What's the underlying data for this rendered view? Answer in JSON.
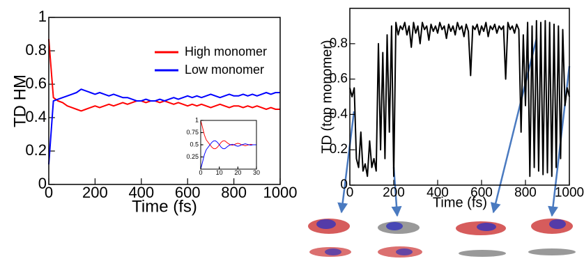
{
  "chart_data": [
    {
      "type": "line",
      "xlabel": "Time (fs)",
      "ylabel": "TD HM",
      "x": [
        0,
        20,
        40,
        60,
        80,
        100,
        120,
        140,
        160,
        180,
        200,
        220,
        240,
        260,
        280,
        300,
        320,
        340,
        360,
        380,
        400,
        420,
        440,
        460,
        480,
        500,
        520,
        540,
        560,
        580,
        600,
        620,
        640,
        660,
        680,
        700,
        720,
        740,
        760,
        780,
        800,
        820,
        840,
        860,
        880,
        900,
        920,
        940,
        960,
        980,
        1000
      ],
      "series": [
        {
          "name": "High monomer",
          "color": "#ff0000",
          "values": [
            0.87,
            0.52,
            0.5,
            0.49,
            0.47,
            0.46,
            0.45,
            0.44,
            0.45,
            0.46,
            0.47,
            0.46,
            0.47,
            0.48,
            0.47,
            0.48,
            0.49,
            0.48,
            0.49,
            0.5,
            0.5,
            0.49,
            0.5,
            0.5,
            0.49,
            0.5,
            0.49,
            0.48,
            0.49,
            0.48,
            0.47,
            0.48,
            0.47,
            0.48,
            0.47,
            0.46,
            0.47,
            0.48,
            0.47,
            0.46,
            0.47,
            0.47,
            0.46,
            0.47,
            0.46,
            0.47,
            0.46,
            0.45,
            0.46,
            0.45,
            0.45
          ]
        },
        {
          "name": "Low monomer",
          "color": "#0000ff",
          "values": [
            0.12,
            0.5,
            0.51,
            0.52,
            0.53,
            0.54,
            0.55,
            0.57,
            0.56,
            0.55,
            0.54,
            0.55,
            0.54,
            0.53,
            0.54,
            0.53,
            0.52,
            0.52,
            0.51,
            0.5,
            0.5,
            0.51,
            0.5,
            0.5,
            0.51,
            0.5,
            0.51,
            0.52,
            0.51,
            0.52,
            0.53,
            0.52,
            0.53,
            0.52,
            0.53,
            0.54,
            0.53,
            0.52,
            0.53,
            0.54,
            0.53,
            0.53,
            0.54,
            0.53,
            0.54,
            0.53,
            0.54,
            0.55,
            0.54,
            0.55,
            0.55
          ]
        }
      ],
      "xlim": [
        0,
        1000
      ],
      "xticks": [
        0,
        200,
        400,
        600,
        800,
        1000
      ],
      "ylim": [
        0,
        1
      ],
      "yticks": [
        0,
        0.2,
        0.4,
        0.6,
        0.8,
        1
      ],
      "legend": "upper right"
    },
    {
      "type": "line",
      "x": [
        0,
        1,
        2,
        3,
        4,
        5,
        6,
        7,
        8,
        9,
        10,
        11,
        12,
        13,
        14,
        15,
        16,
        17,
        18,
        19,
        20,
        21,
        22,
        23,
        24,
        25,
        26,
        27,
        28,
        29,
        30
      ],
      "series": [
        {
          "color": "#ff0000",
          "values": [
            1,
            0.85,
            0.7,
            0.6,
            0.55,
            0.5,
            0.45,
            0.42,
            0.42,
            0.45,
            0.5,
            0.55,
            0.58,
            0.58,
            0.55,
            0.52,
            0.5,
            0.49,
            0.5,
            0.52,
            0.53,
            0.52,
            0.5,
            0.49,
            0.48,
            0.49,
            0.5,
            0.51,
            0.5,
            0.5,
            0.5
          ]
        },
        {
          "color": "#0000ff",
          "values": [
            0,
            0.15,
            0.3,
            0.4,
            0.45,
            0.5,
            0.55,
            0.58,
            0.58,
            0.55,
            0.5,
            0.45,
            0.42,
            0.42,
            0.45,
            0.48,
            0.5,
            0.51,
            0.5,
            0.48,
            0.47,
            0.48,
            0.5,
            0.51,
            0.52,
            0.51,
            0.5,
            0.49,
            0.5,
            0.5,
            0.5
          ]
        }
      ],
      "xlim": [
        0,
        30
      ],
      "xticks": [
        0,
        10,
        20,
        30
      ],
      "ylim": [
        0,
        1
      ],
      "yticks": [
        0.25,
        0.5,
        0.75,
        1
      ]
    },
    {
      "type": "line",
      "xlabel": "Time (fs)",
      "ylabel": "TD (top monomer)",
      "x": [
        0,
        10,
        20,
        30,
        40,
        50,
        60,
        70,
        80,
        90,
        100,
        110,
        120,
        130,
        140,
        150,
        160,
        170,
        180,
        190,
        200,
        210,
        220,
        230,
        240,
        250,
        260,
        270,
        280,
        290,
        300,
        310,
        320,
        330,
        340,
        350,
        360,
        370,
        380,
        390,
        400,
        410,
        420,
        430,
        440,
        450,
        460,
        470,
        480,
        490,
        500,
        510,
        520,
        530,
        540,
        550,
        560,
        570,
        580,
        590,
        600,
        610,
        620,
        630,
        640,
        650,
        660,
        670,
        680,
        690,
        700,
        710,
        720,
        730,
        740,
        750,
        760,
        770,
        780,
        790,
        800,
        810,
        820,
        830,
        840,
        850,
        860,
        870,
        880,
        890,
        900,
        910,
        920,
        930,
        940,
        950,
        960,
        970,
        980,
        990,
        1000
      ],
      "series": [
        {
          "color": "#000000",
          "values": [
            0.55,
            0.5,
            0.55,
            0.15,
            0.1,
            0.3,
            0.08,
            0.12,
            0.05,
            0.25,
            0.1,
            0.15,
            0.08,
            0.8,
            0.2,
            0.75,
            0.15,
            0.85,
            0.3,
            0.9,
            0.05,
            0.92,
            0.85,
            0.9,
            0.88,
            0.92,
            0.85,
            0.9,
            0.78,
            0.92,
            0.86,
            0.9,
            0.8,
            0.92,
            0.88,
            0.9,
            0.82,
            0.91,
            0.87,
            0.9,
            0.86,
            0.92,
            0.88,
            0.9,
            0.83,
            0.91,
            0.87,
            0.9,
            0.85,
            0.92,
            0.88,
            0.9,
            0.84,
            0.91,
            0.87,
            0.62,
            0.9,
            0.88,
            0.91,
            0.85,
            0.9,
            0.87,
            0.92,
            0.84,
            0.9,
            0.88,
            0.91,
            0.86,
            0.9,
            0.88,
            0.9,
            0.6,
            0.92,
            0.88,
            0.9,
            0.86,
            0.91,
            0.88,
            0.3,
            0.85,
            0.45,
            0.92,
            0.05,
            0.9,
            0.1,
            0.93,
            0.08,
            0.92,
            0.06,
            0.93,
            0.07,
            0.92,
            0.05,
            0.91,
            0.1,
            0.9,
            0.15,
            0.88,
            0.45,
            0.55,
            0.5
          ]
        }
      ],
      "xlim": [
        0,
        1000
      ],
      "xticks": [
        0,
        200,
        400,
        600,
        800,
        1000
      ],
      "ylim": [
        0,
        1
      ],
      "yticks": [
        0,
        0.2,
        0.4,
        0.6,
        0.8
      ]
    }
  ]
}
